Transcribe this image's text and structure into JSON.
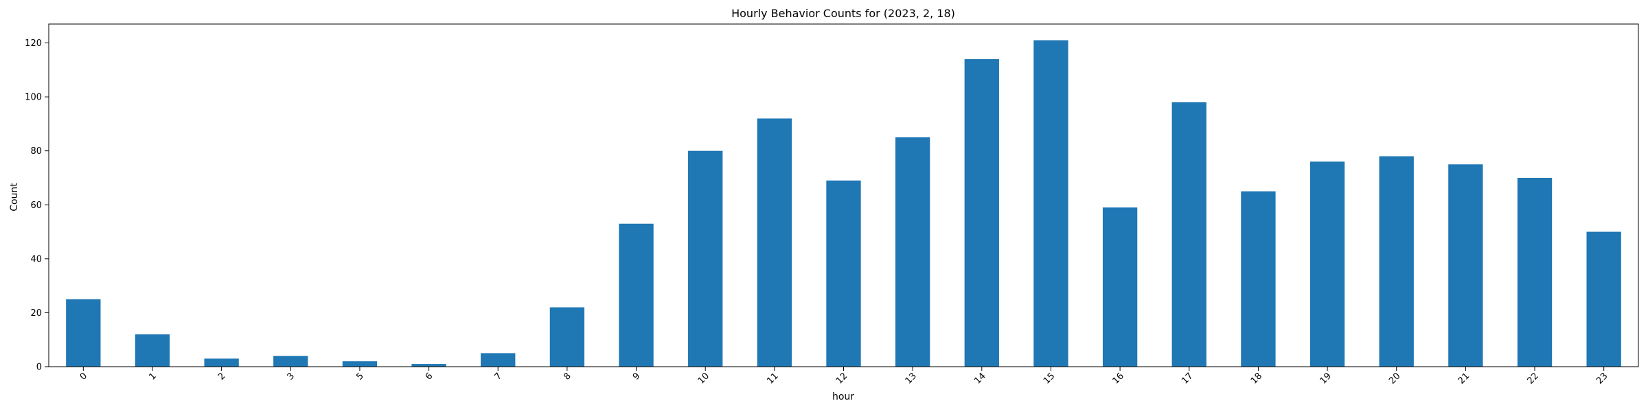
{
  "chart_data": {
    "type": "bar",
    "title": "Hourly Behavior Counts for (2023, 2, 18)",
    "xlabel": "hour",
    "ylabel": "Count",
    "categories": [
      "0",
      "1",
      "2",
      "3",
      "5",
      "6",
      "7",
      "8",
      "9",
      "10",
      "11",
      "12",
      "13",
      "14",
      "15",
      "16",
      "17",
      "18",
      "19",
      "20",
      "21",
      "22",
      "23"
    ],
    "values": [
      25,
      12,
      3,
      4,
      2,
      1,
      5,
      22,
      53,
      80,
      92,
      69,
      85,
      114,
      121,
      59,
      98,
      65,
      76,
      78,
      75,
      70,
      50
    ],
    "ylim": [
      0,
      127
    ],
    "yticks": [
      0,
      20,
      40,
      60,
      80,
      100,
      120
    ],
    "bar_color": "#1f77b4",
    "grid": false,
    "xtick_rotation": 45
  }
}
